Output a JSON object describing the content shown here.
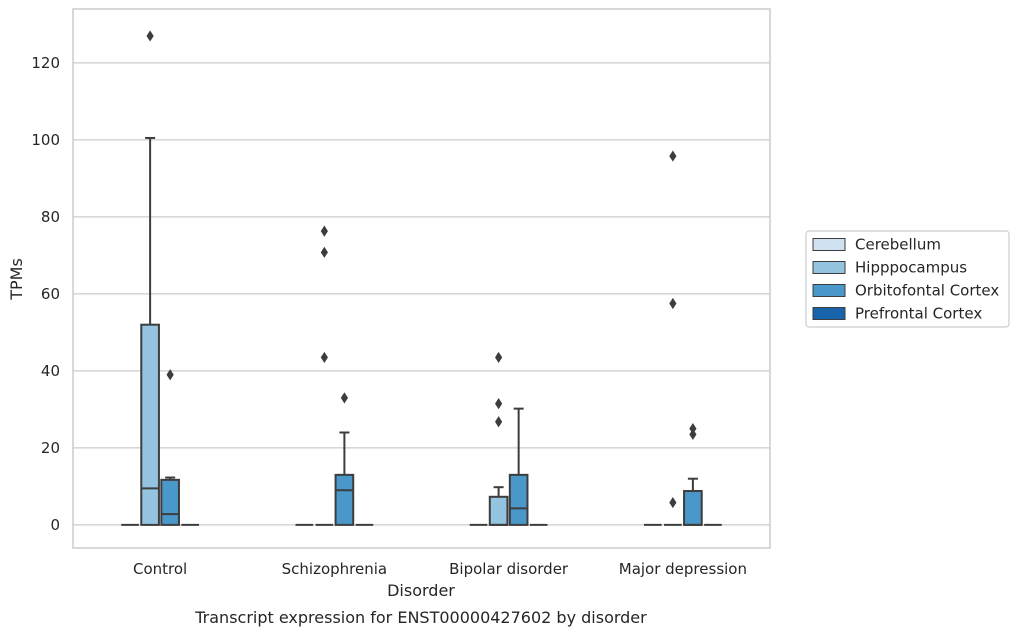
{
  "chart_data": {
    "type": "box",
    "title": "",
    "caption": "Transcript expression for ENST00000427602 by disorder",
    "xlabel": "Disorder",
    "ylabel": "TPMs",
    "ylim": [
      -6,
      134
    ],
    "yticks": [
      0,
      20,
      40,
      60,
      80,
      100,
      120
    ],
    "grid": "horizontal",
    "legend_position": "right",
    "categories": [
      "Control",
      "Schizophrenia",
      "Bipolar disorder",
      "Major depression"
    ],
    "series": [
      {
        "name": "Cerebellum",
        "color": "#d0e1f2",
        "boxes": [
          {
            "min": 0,
            "q1": 0,
            "median": 0,
            "q3": 0,
            "max": 0,
            "outliers": []
          },
          {
            "min": 0,
            "q1": 0,
            "median": 0,
            "q3": 0,
            "max": 0,
            "outliers": []
          },
          {
            "min": 0,
            "q1": 0,
            "median": 0,
            "q3": 0,
            "max": 0,
            "outliers": []
          },
          {
            "min": 0,
            "q1": 0,
            "median": 0,
            "q3": 0,
            "max": 0,
            "outliers": []
          }
        ]
      },
      {
        "name": "Hipppocampus",
        "color": "#94c4df",
        "boxes": [
          {
            "min": 0,
            "q1": 0,
            "median": 9.5,
            "q3": 52,
            "max": 100.5,
            "outliers": [
              127
            ]
          },
          {
            "min": 0,
            "q1": 0,
            "median": 0,
            "q3": 0,
            "max": 0,
            "outliers": [
              76.3,
              70.8,
              43.5
            ]
          },
          {
            "min": 0,
            "q1": 0,
            "median": 0,
            "q3": 7.3,
            "max": 9.8,
            "outliers": [
              43.5,
              31.5,
              26.8
            ]
          },
          {
            "min": 0,
            "q1": 0,
            "median": 0,
            "q3": 0,
            "max": 0,
            "outliers": [
              95.8,
              57.5,
              5.8
            ]
          }
        ]
      },
      {
        "name": "Orbitofontal Cortex",
        "color": "#4a98c9",
        "boxes": [
          {
            "min": 0,
            "q1": 0,
            "median": 2.8,
            "q3": 11.7,
            "max": 12.3,
            "outliers": [
              39
            ]
          },
          {
            "min": 0,
            "q1": 0,
            "median": 9,
            "q3": 13,
            "max": 24,
            "outliers": [
              33
            ]
          },
          {
            "min": 0,
            "q1": 0,
            "median": 4.3,
            "q3": 13,
            "max": 30.2,
            "outliers": []
          },
          {
            "min": 0,
            "q1": 0,
            "median": 0,
            "q3": 8.8,
            "max": 12,
            "outliers": [
              25,
              23.5
            ]
          }
        ]
      },
      {
        "name": "Prefrontal Cortex",
        "color": "#1764ab",
        "boxes": [
          {
            "min": 0,
            "q1": 0,
            "median": 0,
            "q3": 0,
            "max": 0,
            "outliers": []
          },
          {
            "min": 0,
            "q1": 0,
            "median": 0,
            "q3": 0,
            "max": 0,
            "outliers": []
          },
          {
            "min": 0,
            "q1": 0,
            "median": 0,
            "q3": 0,
            "max": 0,
            "outliers": []
          },
          {
            "min": 0,
            "q1": 0,
            "median": 0,
            "q3": 0,
            "max": 0,
            "outliers": []
          }
        ]
      }
    ]
  }
}
